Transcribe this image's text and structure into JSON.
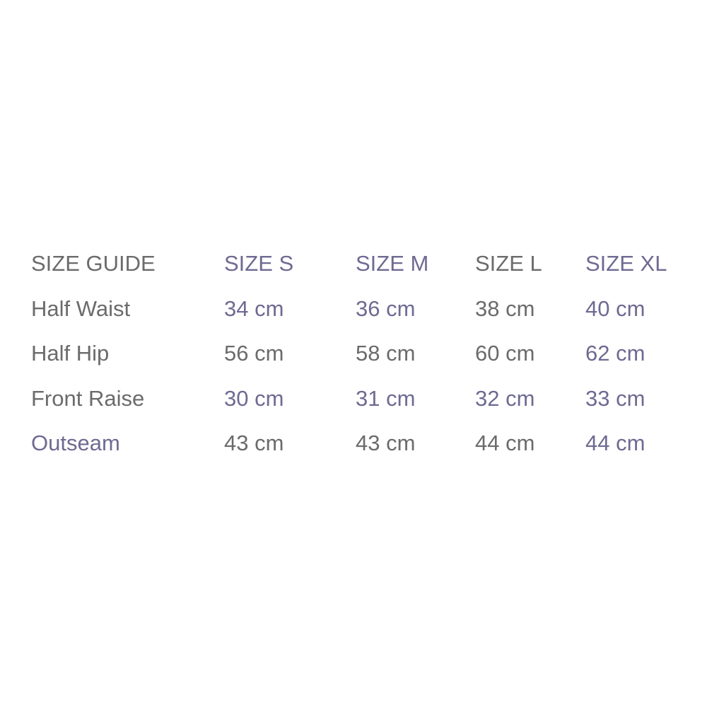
{
  "header": [
    "SIZE GUIDE",
    "SIZE S",
    "SIZE M",
    "SIZE L",
    "SIZE XL"
  ],
  "rows": [
    [
      "Half Waist",
      "34 cm",
      "36 cm",
      "38 cm",
      "40 cm"
    ],
    [
      "Half Hip",
      "56 cm",
      "58 cm",
      "60 cm",
      "62 cm"
    ],
    [
      "Front Raise",
      "30 cm",
      "31 cm",
      "32 cm",
      "33 cm"
    ],
    [
      "Outseam",
      "43 cm",
      "43 cm",
      "44 cm",
      "44 cm"
    ]
  ],
  "colors": {
    "text_gray": "#6b6b6b",
    "text_purple": "#6e6a92"
  }
}
